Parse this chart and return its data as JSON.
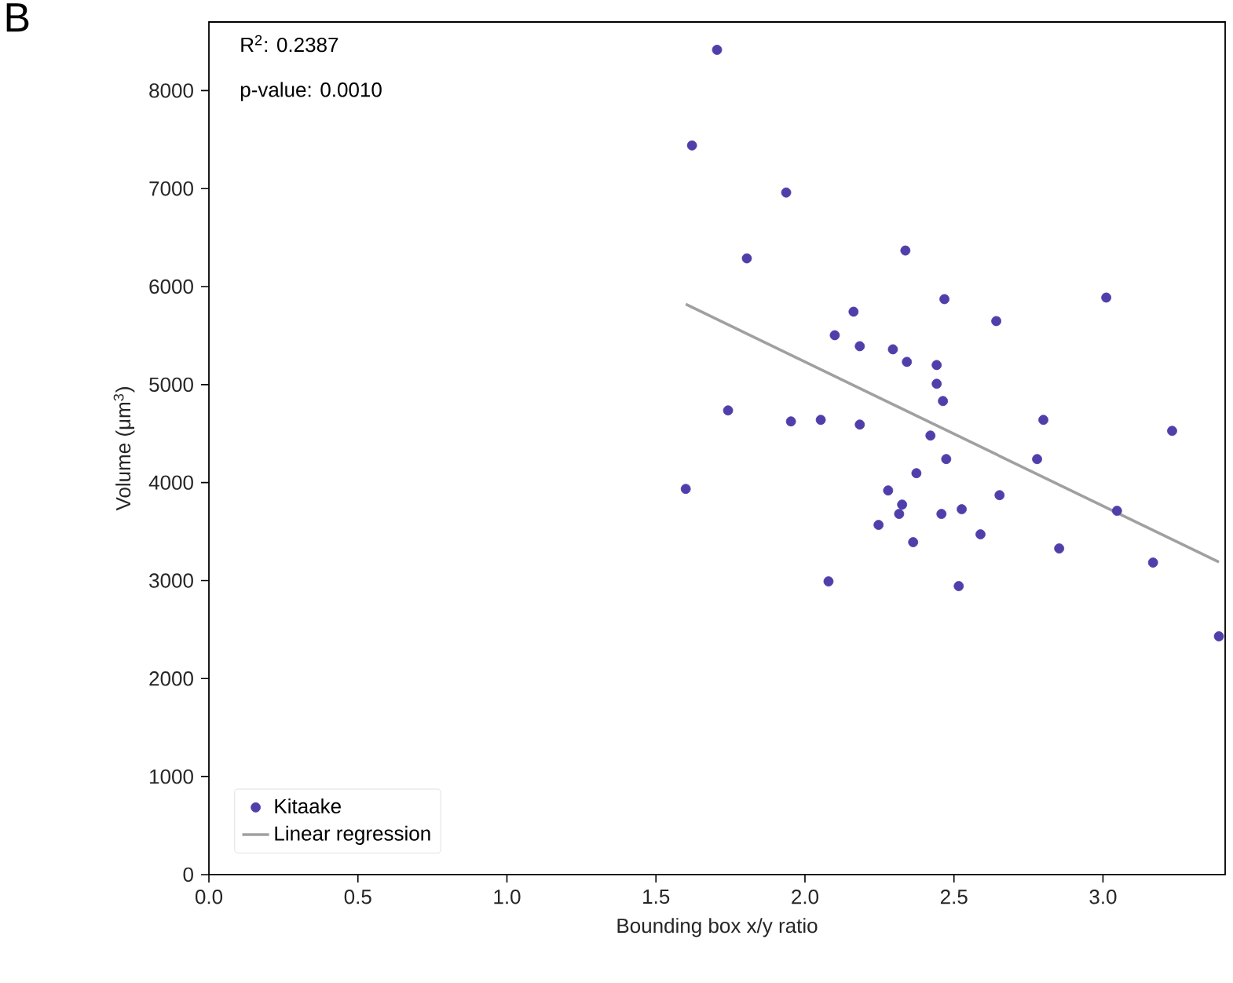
{
  "chart_data": {
    "type": "scatter",
    "xlabel": "Bounding box x/y ratio",
    "ylabel": "Volume (μm$^{3}$)",
    "annotations": [
      "B",
      "R$^{2}$: 0.2387",
      "p-value: 0.0010"
    ],
    "xlim": [
      0,
      3.41
    ],
    "ylim": [
      0,
      8700
    ],
    "xticks": [
      {
        "value": 0,
        "label": "0.0"
      },
      {
        "value": 0.5,
        "label": "0.5"
      },
      {
        "value": 1,
        "label": "1.0"
      },
      {
        "value": 1.5,
        "label": "1.5"
      },
      {
        "value": 2,
        "label": "2.0"
      },
      {
        "value": 2.5,
        "label": "2.5"
      },
      {
        "value": 3,
        "label": "3.0"
      }
    ],
    "yticks": [
      0,
      1000,
      2000,
      3000,
      4000,
      5000,
      6000,
      7000,
      8000
    ],
    "grid": false,
    "legend": "bottom left",
    "series": [
      {
        "name": "Kitaake",
        "marker": "circle",
        "color": "#4f3fab",
        "x": [
          1.705,
          1.621,
          1.937,
          1.805,
          2.337,
          2.468,
          3.011,
          2.163,
          2.642,
          2.1,
          2.184,
          2.295,
          2.342,
          2.442,
          2.442,
          2.463,
          1.742,
          1.953,
          2.053,
          2.184,
          2.8,
          3.232,
          2.421,
          2.474,
          2.779,
          2.374,
          1.6,
          2.279,
          2.653,
          3.047,
          2.326,
          2.316,
          2.458,
          2.526,
          2.247,
          2.589,
          2.363,
          2.853,
          3.168,
          2.079,
          2.516,
          3.389
        ],
        "values": [
          8416,
          7440,
          6960,
          6288,
          6368,
          5872,
          5888,
          5744,
          5648,
          5504,
          5392,
          5360,
          5232,
          5200,
          5008,
          4832,
          4736,
          4624,
          4640,
          4592,
          4640,
          4528,
          4480,
          4240,
          4240,
          4096,
          3936,
          3920,
          3872,
          3712,
          3776,
          3680,
          3680,
          3728,
          3568,
          3472,
          3392,
          3328,
          3184,
          2992,
          2944,
          2432
        ]
      },
      {
        "name": "Linear regression",
        "type": "line",
        "marker": "none",
        "line_style": "solid",
        "color": "#a0a0a0",
        "x": [
          1.6,
          3.389
        ],
        "values": [
          5820,
          3190
        ]
      }
    ]
  }
}
